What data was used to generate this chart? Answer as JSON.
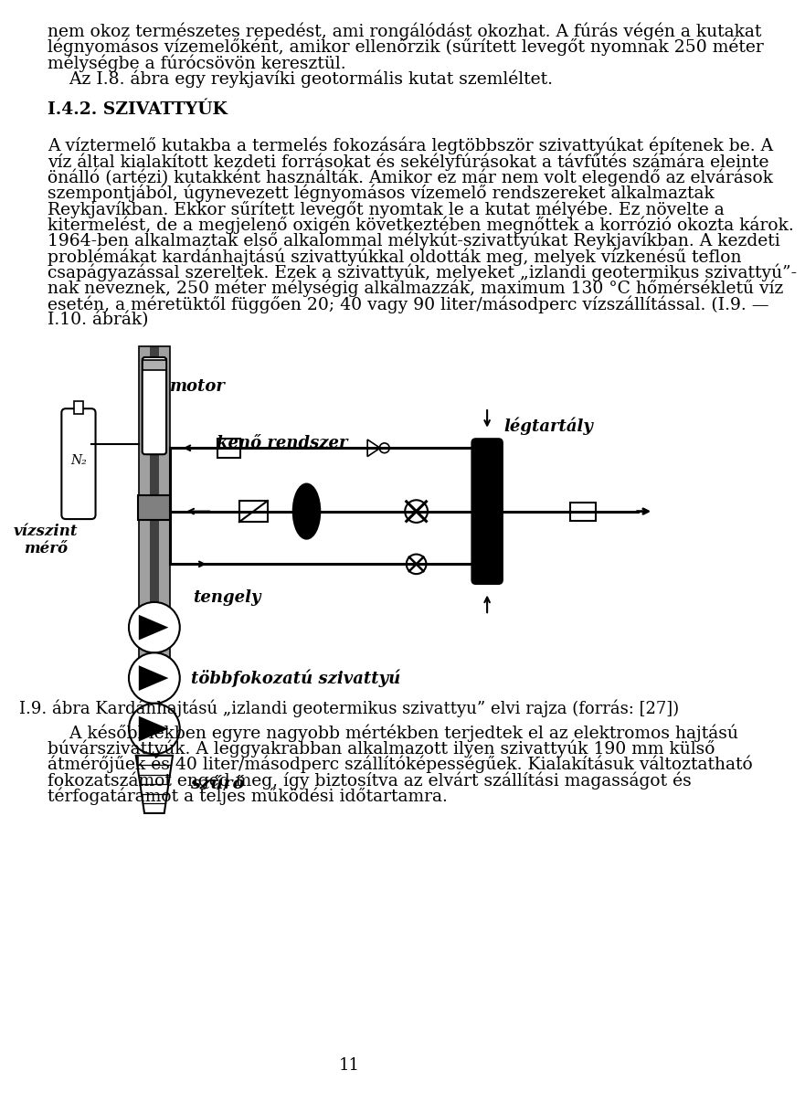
{
  "bg_color": "#ffffff",
  "text_color": "#000000",
  "page_number": "11",
  "caption": "I.9. ábra Kardánhajtású „izlandi geotermikus szivattyu” elvi rajza (forrás: [27])",
  "lines_p1": [
    "nem okoz természetes repedést, ami rongálódást okozhat. A fúrás végén a kutakat",
    "légnyomásos vízemelőként, amikor ellenőrzik (sűrített levegőt nyomnak 250 méter",
    "mélységbe a fúrócsövön keresztül.",
    "    Az I.8. ábra egy reykjavíki geotormális kutat szemléltet."
  ],
  "section_bold": "I.4.2.",
  "section_smallcaps": "Szivattyúk",
  "section_display": "I.4.2. SZIVATTYÚK",
  "lines_p2": [
    "A víztermelő kutakba a termelés fokozására legtöbbször szivattyúkat építenek be. A",
    "víz által kialakított kezdeti forrásokat és sekélyfúrásokat a távfűtés számára eleinte",
    "önálló (artézi) kutakként használták. Amikor ez már nem volt elegendő az elvárások",
    "szempontjából, úgynevezett légnyomásos vízemelő rendszereket alkalmaztak",
    "Reykjavíkban. Ekkor sűrített levegőt nyomtak le a kutat mélyébe. Ez növelte a",
    "kitermElést, de a megjelenő oxigén következtében megnőttek a korrózió okozta károk.",
    "1964-ben alkalmaztak első alkalommal mélykút-szivattyúkat Reykjavíkban. A kezdeti",
    "problémákat kardánhajtasú szivattyúkkal oldóttak meg, melyek vízkenésű teflon",
    "csapágyazással szereltek. Ezek a szivattyúk, melyeket „izlandi geotermikus szivattyú”-",
    "nak neveznek, 250 méter mélységig alkalmazzák, maximum 130 °C hőmérsékletű víz",
    "esetén, a méretüktől függően 20; 40 vagy 90 liter/másodperc vízSzállítással. (I.9. —",
    "I.10. ábrák)"
  ],
  "lines_p3": [
    "    A későbbiekben egyre nagyobb mértékben terjedtek el az elektromos hajtású",
    "búvárszivattyúk. A leggyakrabban alkalmazott ilyen szivattyúk 190 mm külső",
    "átmérőjűek és 40 liter/másodperc szállítóképességűek. Kialakításuk változtatható",
    "fokozatszámot enged meg, így biztosítva az elvárt szállítási magasságot és",
    "térfogatáramot a teljes működési időtartamra."
  ],
  "label_motor": "motor",
  "label_keno": "kenő rendszer",
  "label_legtartaly": "légtartály",
  "label_vizszint": "vízszint\nmérő",
  "label_tengely": "tengely",
  "label_tobbfokozatu": "többfokozatú szivattyú",
  "label_szuro": "szűrő"
}
